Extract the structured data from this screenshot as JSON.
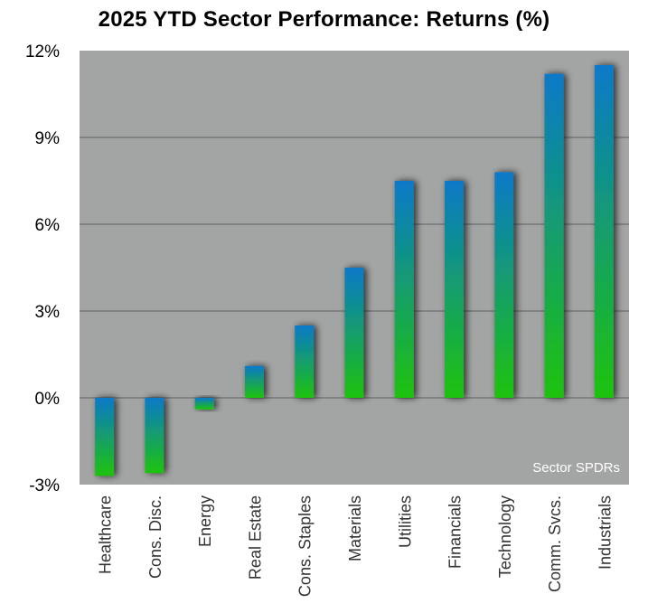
{
  "chart_data": {
    "type": "bar",
    "title": "2025 YTD Sector Performance: Returns (%)",
    "xlabel": "",
    "ylabel": "",
    "ylim": [
      -3,
      12
    ],
    "yticks": [
      12,
      9,
      6,
      3,
      0,
      -3
    ],
    "ytick_labels": [
      "12%",
      "9%",
      "6%",
      "3%",
      "0%",
      "-3%"
    ],
    "grid": true,
    "categories": [
      "Healthcare",
      "Cons. Disc.",
      "Energy",
      "Real Estate",
      "Cons. Staples",
      "Materials",
      "Utilities",
      "Financials",
      "Technology",
      "Comm. Svcs.",
      "Industrials"
    ],
    "values": [
      -2.7,
      -2.6,
      -0.4,
      1.1,
      2.5,
      4.5,
      7.5,
      7.5,
      7.8,
      11.2,
      11.5
    ],
    "annotation": "Sector SPDRs",
    "colors": {
      "plot_bg": "#a3a5a4",
      "grid": "#5f5f5f",
      "bar_top": "#0a79c9",
      "bar_bottom": "#1ec30d"
    }
  }
}
